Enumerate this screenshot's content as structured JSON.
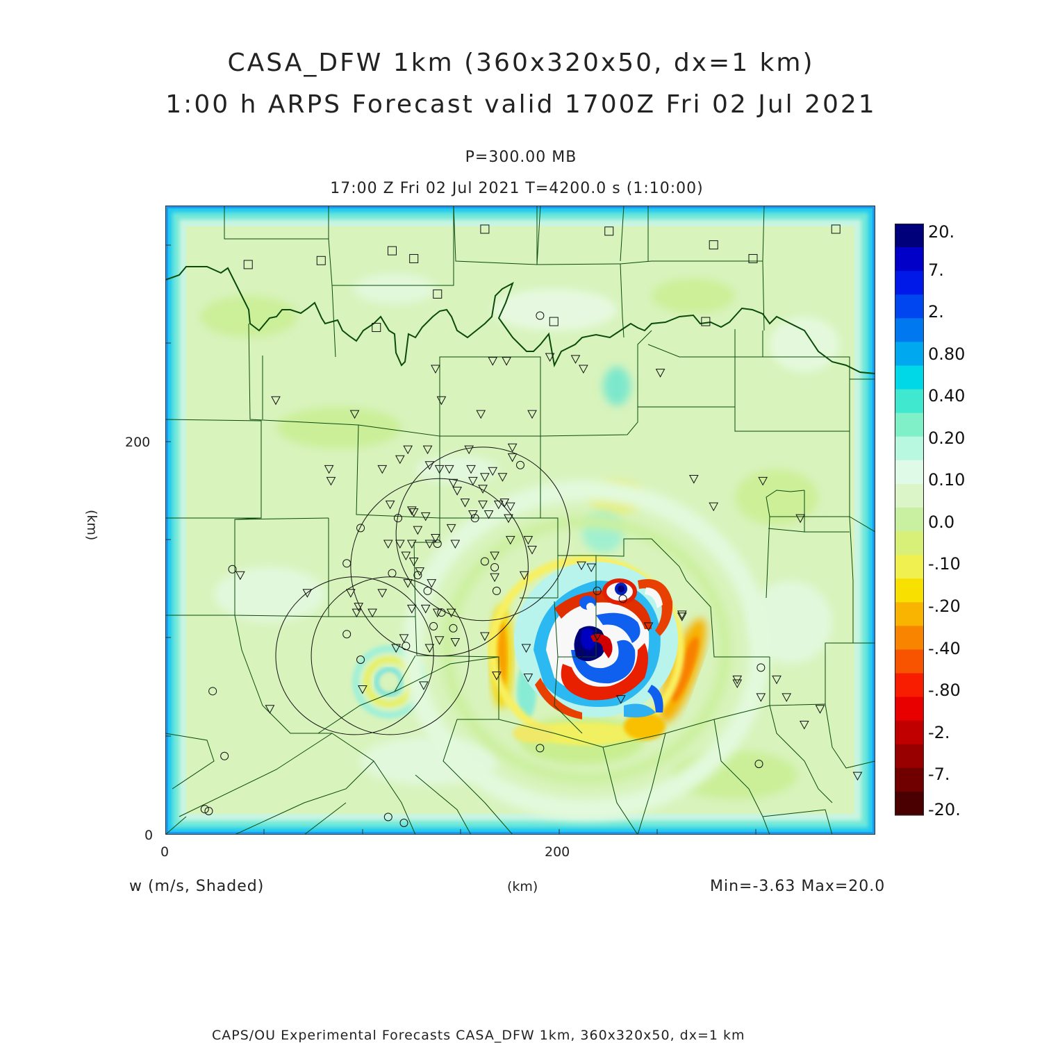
{
  "header": {
    "title_line1": "CASA_DFW 1km (360x320x50, dx=1 km)",
    "title_line2": "1:00 h ARPS Forecast valid 1700Z Fri 02 Jul 2021",
    "level": "P=300.00 MB",
    "time_line": "17:00 Z Fri 02 Jul 2021    T=4200.0 s (1:10:00)"
  },
  "axes": {
    "x_label": "(km)",
    "y_label": "(km)",
    "x_ticks": [
      "0",
      "200"
    ],
    "y_ticks": [
      "0",
      "200"
    ],
    "x_range_km": [
      0,
      360
    ],
    "y_range_km": [
      0,
      320
    ]
  },
  "footer": {
    "field_label": "w (m/s, Shaded)",
    "minmax": "Min=-3.63 Max=20.0",
    "credit": "CAPS/OU Experimental Forecasts  CASA_DFW 1km, 360x320x50, dx=1 km"
  },
  "colorbar": {
    "labels": [
      "20.",
      "7.",
      "2.",
      "0.80",
      "0.40",
      "0.20",
      "0.10",
      "0.0",
      "-.10",
      "-.20",
      "-.40",
      "-.80",
      "-2.",
      "-7.",
      "-20."
    ],
    "colors": [
      "#00007a",
      "#0000c8",
      "#0018e8",
      "#0046f0",
      "#0078f0",
      "#00a8f0",
      "#00d8e8",
      "#40e8d0",
      "#80f0c8",
      "#b8f8e0",
      "#e0fae8",
      "#dcf5c8",
      "#c8f0a0",
      "#d8f078",
      "#f0f050",
      "#f8e000",
      "#f8b400",
      "#f88400",
      "#f85400",
      "#f81c00",
      "#e80000",
      "#c00000",
      "#980000",
      "#700000",
      "#4a0000"
    ]
  },
  "chart_data": {
    "type": "contour_map",
    "field": "w (m/s, Shaded)",
    "level": "300.00 MB",
    "min": -3.63,
    "max": 20.0,
    "contour_levels": [
      -20,
      -7,
      -2,
      -0.8,
      -0.4,
      -0.2,
      -0.1,
      0.0,
      0.1,
      0.2,
      0.4,
      0.8,
      2,
      7,
      20
    ],
    "storm_center_km": [
      214,
      92
    ],
    "secondary_cells_km": [
      [
        231,
        126
      ],
      [
        114,
        76
      ]
    ],
    "radar_rings_km": [
      {
        "x": 161,
        "y": 153,
        "r": 44
      },
      {
        "x": 139,
        "y": 136,
        "r": 45
      },
      {
        "x": 114,
        "y": 91,
        "r": 40
      },
      {
        "x": 96,
        "y": 91,
        "r": 40
      }
    ],
    "stations_triangle_km": [
      [
        56,
        221
      ],
      [
        96,
        214
      ],
      [
        137,
        237
      ],
      [
        140,
        221
      ],
      [
        160,
        214
      ],
      [
        186,
        214
      ],
      [
        173,
        241
      ],
      [
        123,
        196
      ],
      [
        133,
        196
      ],
      [
        154,
        196
      ],
      [
        176,
        197
      ],
      [
        83,
        186
      ],
      [
        84,
        180
      ],
      [
        110,
        186
      ],
      [
        119,
        191
      ],
      [
        134,
        188
      ],
      [
        139,
        186
      ],
      [
        144,
        186
      ],
      [
        155,
        186
      ],
      [
        166,
        185
      ],
      [
        176,
        192
      ],
      [
        156,
        180
      ],
      [
        162,
        182
      ],
      [
        161,
        176
      ],
      [
        171,
        182
      ],
      [
        148,
        175
      ],
      [
        146,
        179
      ],
      [
        152,
        169
      ],
      [
        161,
        168
      ],
      [
        169,
        168
      ],
      [
        172,
        169
      ],
      [
        175,
        167
      ],
      [
        114,
        168
      ],
      [
        125,
        165
      ],
      [
        126,
        164
      ],
      [
        132,
        162
      ],
      [
        128,
        155
      ],
      [
        145,
        156
      ],
      [
        156,
        163
      ],
      [
        164,
        163
      ],
      [
        174,
        161
      ],
      [
        113,
        148
      ],
      [
        119,
        148
      ],
      [
        125,
        148
      ],
      [
        134,
        148
      ],
      [
        137,
        151
      ],
      [
        147,
        148
      ],
      [
        175,
        150
      ],
      [
        184,
        150
      ],
      [
        186,
        145
      ],
      [
        167,
        142
      ],
      [
        167,
        131
      ],
      [
        182,
        132
      ],
      [
        122,
        142
      ],
      [
        126,
        139
      ],
      [
        129,
        134
      ],
      [
        38,
        132
      ],
      [
        72,
        123
      ],
      [
        94,
        123
      ],
      [
        98,
        116
      ],
      [
        97,
        113
      ],
      [
        105,
        113
      ],
      [
        110,
        123
      ],
      [
        123,
        128
      ],
      [
        135,
        128
      ],
      [
        125,
        115
      ],
      [
        132,
        115
      ],
      [
        138,
        113
      ],
      [
        145,
        113
      ],
      [
        147,
        98
      ],
      [
        139,
        99
      ],
      [
        134,
        95
      ],
      [
        121,
        100
      ],
      [
        162,
        101
      ],
      [
        168,
        81
      ],
      [
        183,
        95
      ],
      [
        117,
        95
      ],
      [
        131,
        76
      ],
      [
        53,
        64
      ],
      [
        100,
        74
      ],
      [
        184,
        80
      ],
      [
        268,
        181
      ],
      [
        278,
        167
      ],
      [
        303,
        180
      ],
      [
        322,
        161
      ],
      [
        262,
        111
      ],
      [
        290,
        77
      ],
      [
        290,
        79
      ],
      [
        310,
        79
      ],
      [
        302,
        70
      ],
      [
        315,
        70
      ],
      [
        324,
        56
      ],
      [
        332,
        64
      ],
      [
        351,
        30
      ],
      [
        231,
        69
      ],
      [
        219,
        101
      ],
      [
        245,
        106
      ],
      [
        262,
        112
      ],
      [
        208,
        242
      ],
      [
        212,
        237
      ],
      [
        251,
        235
      ],
      [
        216,
        136
      ],
      [
        211,
        137
      ],
      [
        195,
        243
      ],
      [
        166,
        241
      ]
    ],
    "stations_circle_km": [
      [
        34,
        135
      ],
      [
        99,
        156
      ],
      [
        118,
        161
      ],
      [
        138,
        148
      ],
      [
        157,
        161
      ],
      [
        167,
        136
      ],
      [
        92,
        138
      ],
      [
        115,
        133
      ],
      [
        133,
        124
      ],
      [
        146,
        105
      ],
      [
        162,
        139
      ],
      [
        168,
        124
      ],
      [
        128,
        132
      ],
      [
        140,
        113
      ],
      [
        136,
        106
      ],
      [
        122,
        96
      ],
      [
        99,
        89
      ],
      [
        92,
        102
      ],
      [
        24,
        73
      ],
      [
        22,
        12
      ],
      [
        30,
        40
      ],
      [
        121,
        6
      ],
      [
        113,
        9
      ],
      [
        20,
        13
      ],
      [
        190,
        44
      ],
      [
        210,
        92
      ],
      [
        232,
        120
      ],
      [
        219,
        124
      ],
      [
        302,
        85
      ],
      [
        301,
        36
      ],
      [
        180,
        188
      ],
      [
        190,
        264
      ]
    ],
    "stations_square_km": [
      [
        42,
        290
      ],
      [
        79,
        292
      ],
      [
        115,
        297
      ],
      [
        126,
        293
      ],
      [
        138,
        275
      ],
      [
        162,
        308
      ],
      [
        225,
        307
      ],
      [
        278,
        300
      ],
      [
        298,
        293
      ],
      [
        340,
        308
      ],
      [
        107,
        258
      ],
      [
        274,
        261
      ],
      [
        197,
        261
      ]
    ]
  }
}
